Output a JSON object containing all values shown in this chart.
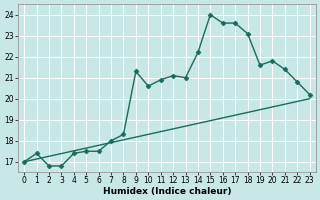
{
  "xlabel": "Humidex (Indice chaleur)",
  "bg_color": "#c8e8e8",
  "grid_color": "#ffffff",
  "line_color": "#1a6b5a",
  "xlim": [
    -0.5,
    23.5
  ],
  "ylim": [
    16.5,
    24.5
  ],
  "xticks": [
    0,
    1,
    2,
    3,
    4,
    5,
    6,
    7,
    8,
    9,
    10,
    11,
    12,
    13,
    14,
    15,
    16,
    17,
    18,
    19,
    20,
    21,
    22,
    23
  ],
  "yticks": [
    17,
    18,
    19,
    20,
    21,
    22,
    23,
    24
  ],
  "curve1_x": [
    0,
    1,
    2,
    3,
    4,
    5,
    6,
    7,
    8,
    9,
    10,
    11,
    12,
    13,
    14,
    15,
    16,
    17,
    18,
    19,
    20,
    21,
    22,
    23
  ],
  "curve1_y": [
    17.0,
    17.4,
    16.8,
    16.8,
    17.4,
    17.5,
    17.5,
    18.0,
    18.3,
    21.3,
    20.6,
    20.9,
    21.1,
    21.0,
    22.2,
    24.0,
    23.6,
    23.6,
    23.1,
    21.6,
    21.8,
    21.4,
    20.8,
    20.2
  ],
  "curve2_x": [
    0,
    23
  ],
  "curve2_y": [
    17.0,
    20.0
  ],
  "marker": "D",
  "marker_size": 2.5,
  "line_width": 1.0,
  "tick_fontsize": 5.5,
  "label_fontsize": 6.5
}
